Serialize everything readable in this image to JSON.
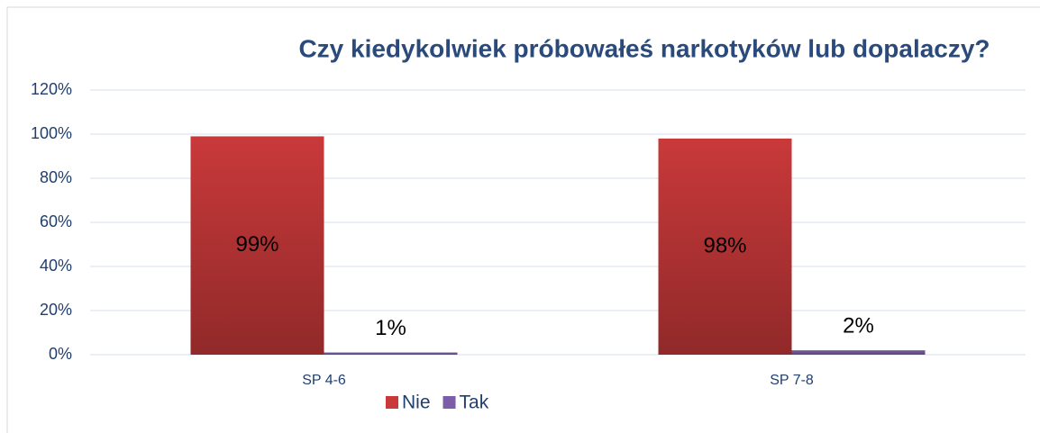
{
  "chart_data": {
    "type": "bar",
    "title": "Czy kiedykolwiek próbowałeś narkotyków lub dopalaczy?",
    "categories": [
      "SP 4-6",
      "SP 7-8"
    ],
    "series": [
      {
        "name": "Nie",
        "color": "#c9393a",
        "values": [
          99,
          98
        ],
        "value_labels": [
          "99%",
          "98%"
        ]
      },
      {
        "name": "Tak",
        "color": "#7b5ea7",
        "values": [
          1,
          2
        ],
        "value_labels": [
          "1%",
          "2%"
        ]
      }
    ],
    "ylim": [
      0,
      120
    ],
    "yticks": [
      {
        "value": 0,
        "label": "0%"
      },
      {
        "value": 20,
        "label": "20%"
      },
      {
        "value": 40,
        "label": "40%"
      },
      {
        "value": 60,
        "label": "60%"
      },
      {
        "value": 80,
        "label": "80%"
      },
      {
        "value": 100,
        "label": "100%"
      },
      {
        "value": 120,
        "label": "120%"
      }
    ],
    "grid": true,
    "legend": "bottom"
  }
}
